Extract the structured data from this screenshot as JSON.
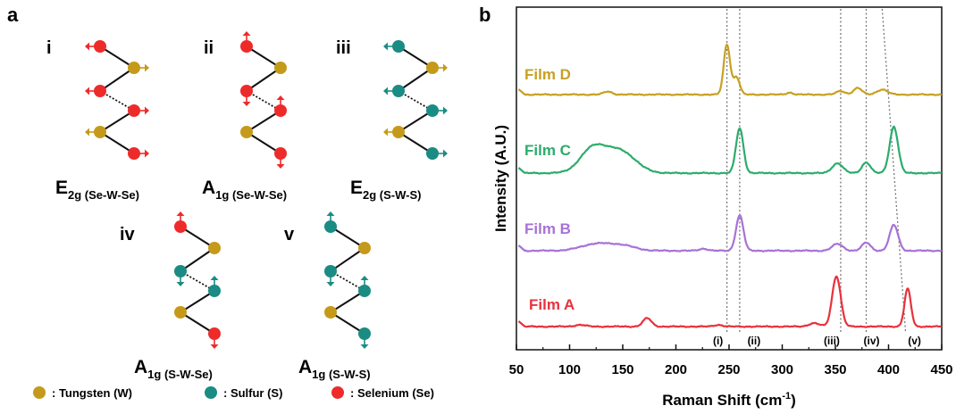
{
  "panel_a": {
    "letter": "a",
    "modes": [
      {
        "numeral": "i",
        "main": "E",
        "sub": "2g (Se-W-Se)"
      },
      {
        "numeral": "ii",
        "main": "A",
        "sub": "1g (Se-W-Se)"
      },
      {
        "numeral": "iii",
        "main": "E",
        "sub": "2g (S-W-S)"
      },
      {
        "numeral": "iv",
        "main": "A",
        "sub": "1g (S-W-Se)"
      },
      {
        "numeral": "v",
        "main": "A",
        "sub": "1g (S-W-S)"
      }
    ],
    "legend": [
      {
        "label": ": Tungsten (W)",
        "color": "#c59a1b"
      },
      {
        "label": ": Sulfur (S)",
        "color": "#1a8c83"
      },
      {
        "label": ": Selenium (Se)",
        "color": "#ee2b2b"
      }
    ],
    "atom_colors": {
      "W": "#c59a1b",
      "S": "#1a8c83",
      "Se": "#ee2b2b"
    }
  },
  "panel_b": {
    "letter": "b",
    "chart_data": {
      "type": "line",
      "xlabel": "Raman Shift (cm",
      "xlabel_sup": "-1",
      "xlabel_end": ")",
      "ylabel": "Intensity (A.U.)",
      "xlim": [
        50,
        450
      ],
      "xticks": [
        "50",
        "100",
        "150",
        "200",
        "250",
        "300",
        "350",
        "400",
        "450"
      ],
      "reference_lines": [
        {
          "label": "(i)",
          "x": 248
        },
        {
          "label": "(ii)",
          "x": 260
        },
        {
          "label": "(iii)",
          "x": 355
        },
        {
          "label": "(iv)",
          "x": 379
        },
        {
          "label": "(v)",
          "x": [
            394,
            416
          ]
        }
      ],
      "series": [
        {
          "name": "Film D",
          "color": "#c8a022",
          "baseline": 0,
          "peaks": [
            [
              136,
              0.06,
              4
            ],
            [
              248,
              1.0,
              3
            ],
            [
              257,
              0.35,
              3
            ],
            [
              307,
              0.04,
              3
            ],
            [
              355,
              0.07,
              4
            ],
            [
              371,
              0.13,
              4
            ],
            [
              394,
              0.1,
              5
            ]
          ]
        },
        {
          "name": "Film C",
          "color": "#2cac6c",
          "baseline": 0,
          "peaks": [
            [
              122,
              0.27,
              12
            ],
            [
              148,
              0.24,
              14
            ],
            [
              260,
              0.5,
              3.5
            ],
            [
              352,
              0.11,
              5
            ],
            [
              379,
              0.12,
              4
            ],
            [
              405,
              0.52,
              4
            ]
          ]
        },
        {
          "name": "Film B",
          "color": "#a772d6",
          "baseline": 0,
          "peaks": [
            [
              125,
              0.1,
              14
            ],
            [
              150,
              0.07,
              12
            ],
            [
              226,
              0.03,
              4
            ],
            [
              260,
              0.52,
              3.5
            ],
            [
              352,
              0.1,
              5
            ],
            [
              379,
              0.12,
              4
            ],
            [
              405,
              0.38,
              4
            ]
          ]
        },
        {
          "name": "Film A",
          "color": "#e8313c",
          "baseline": 0,
          "peaks": [
            [
              110,
              0.02,
              5
            ],
            [
              173,
              0.1,
              4
            ],
            [
              240,
              0.02,
              4
            ],
            [
              330,
              0.04,
              5
            ],
            [
              351,
              0.6,
              4
            ],
            [
              418,
              0.45,
              3
            ]
          ]
        }
      ]
    }
  }
}
